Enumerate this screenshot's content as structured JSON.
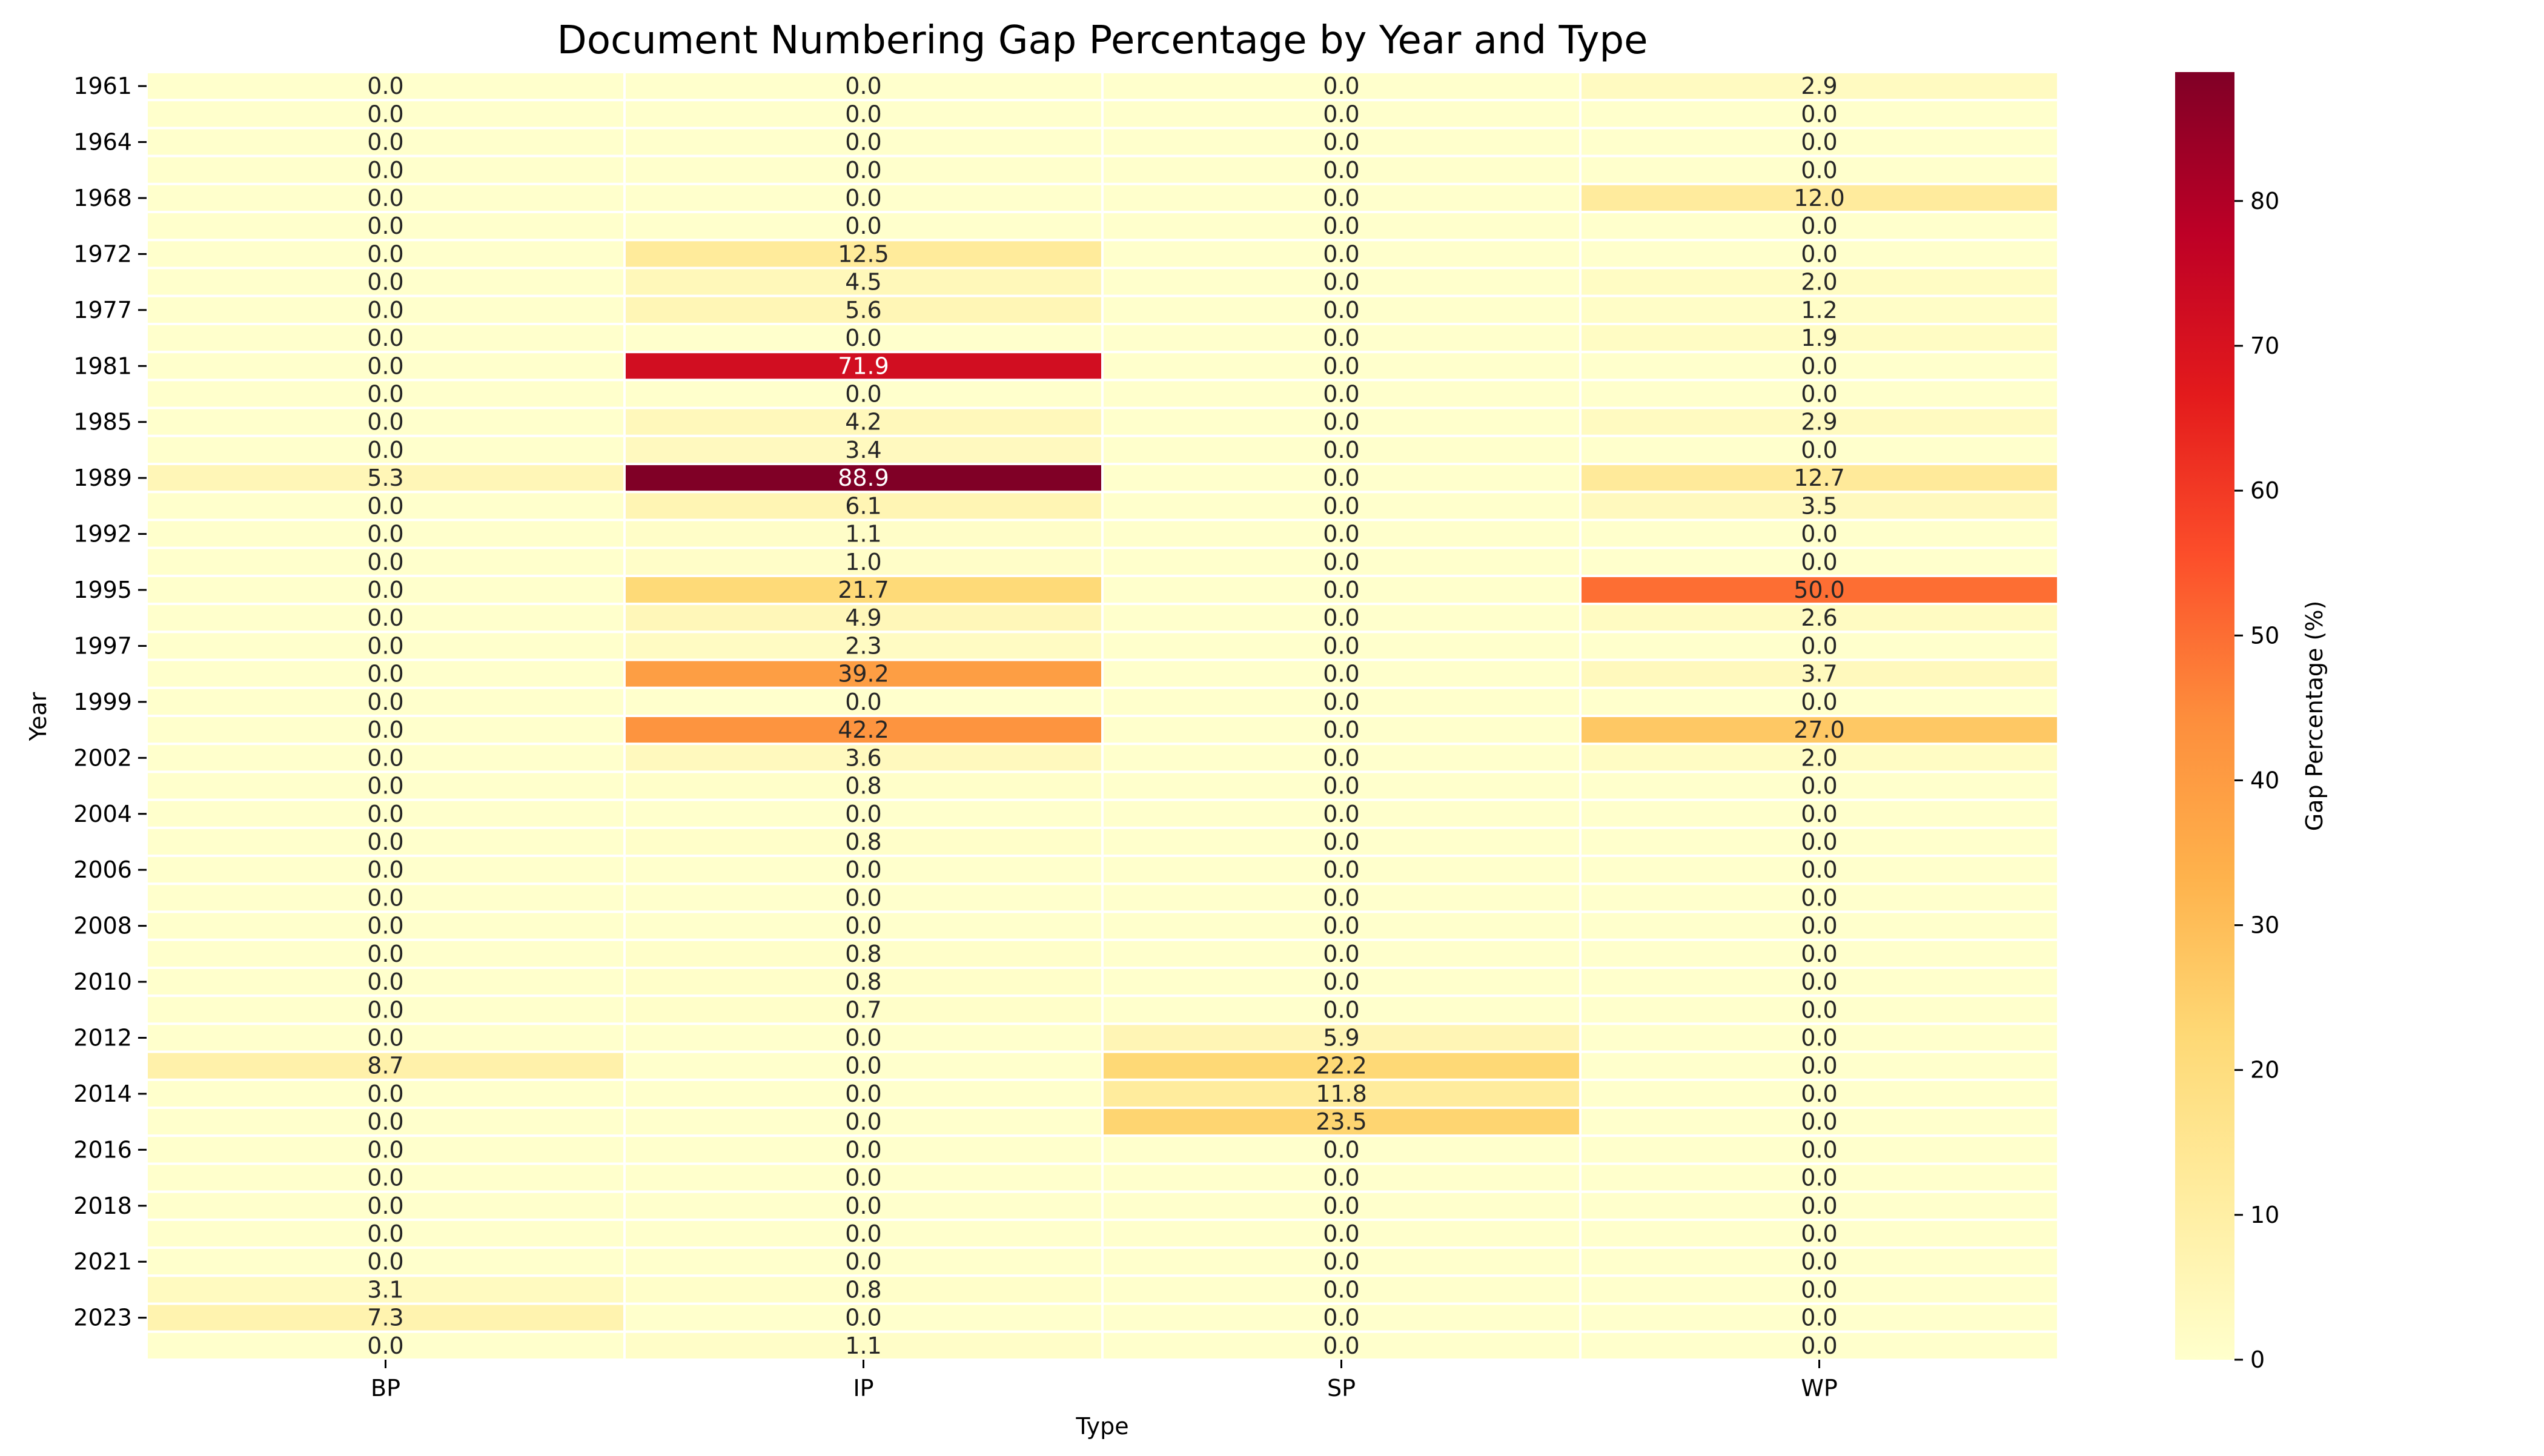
{
  "chart_data": {
    "type": "heatmap",
    "title": "Document Numbering Gap Percentage by Year and Type",
    "xlabel": "Type",
    "ylabel": "Year",
    "colorbar_label": "Gap Percentage (%)",
    "colormap": "YlOrRd",
    "colormap_stops": [
      "#ffffcc",
      "#ffeda0",
      "#fed976",
      "#feb24c",
      "#fd8d3c",
      "#fc4e2a",
      "#e31a1c",
      "#bd0026",
      "#800026"
    ],
    "value_range": [
      0,
      88.9
    ],
    "colorbar_ticks": [
      "0",
      "10",
      "20",
      "30",
      "40",
      "50",
      "60",
      "70",
      "80"
    ],
    "columns": [
      "BP",
      "IP",
      "SP",
      "WP"
    ],
    "rows": [
      {
        "year": "1961",
        "values": [
          0.0,
          0.0,
          0.0,
          2.9
        ]
      },
      {
        "year": "",
        "values": [
          0.0,
          0.0,
          0.0,
          0.0
        ]
      },
      {
        "year": "1964",
        "values": [
          0.0,
          0.0,
          0.0,
          0.0
        ]
      },
      {
        "year": "",
        "values": [
          0.0,
          0.0,
          0.0,
          0.0
        ]
      },
      {
        "year": "1968",
        "values": [
          0.0,
          0.0,
          0.0,
          12.0
        ]
      },
      {
        "year": "",
        "values": [
          0.0,
          0.0,
          0.0,
          0.0
        ]
      },
      {
        "year": "1972",
        "values": [
          0.0,
          12.5,
          0.0,
          0.0
        ]
      },
      {
        "year": "",
        "values": [
          0.0,
          4.5,
          0.0,
          2.0
        ]
      },
      {
        "year": "1977",
        "values": [
          0.0,
          5.6,
          0.0,
          1.2
        ]
      },
      {
        "year": "",
        "values": [
          0.0,
          0.0,
          0.0,
          1.9
        ]
      },
      {
        "year": "1981",
        "values": [
          0.0,
          71.9,
          0.0,
          0.0
        ]
      },
      {
        "year": "",
        "values": [
          0.0,
          0.0,
          0.0,
          0.0
        ]
      },
      {
        "year": "1985",
        "values": [
          0.0,
          4.2,
          0.0,
          2.9
        ]
      },
      {
        "year": "",
        "values": [
          0.0,
          3.4,
          0.0,
          0.0
        ]
      },
      {
        "year": "1989",
        "values": [
          5.3,
          88.9,
          0.0,
          12.7
        ]
      },
      {
        "year": "",
        "values": [
          0.0,
          6.1,
          0.0,
          3.5
        ]
      },
      {
        "year": "1992",
        "values": [
          0.0,
          1.1,
          0.0,
          0.0
        ]
      },
      {
        "year": "",
        "values": [
          0.0,
          1.0,
          0.0,
          0.0
        ]
      },
      {
        "year": "1995",
        "values": [
          0.0,
          21.7,
          0.0,
          50.0
        ]
      },
      {
        "year": "",
        "values": [
          0.0,
          4.9,
          0.0,
          2.6
        ]
      },
      {
        "year": "1997",
        "values": [
          0.0,
          2.3,
          0.0,
          0.0
        ]
      },
      {
        "year": "",
        "values": [
          0.0,
          39.2,
          0.0,
          3.7
        ]
      },
      {
        "year": "1999",
        "values": [
          0.0,
          0.0,
          0.0,
          0.0
        ]
      },
      {
        "year": "",
        "values": [
          0.0,
          42.2,
          0.0,
          27.0
        ]
      },
      {
        "year": "2002",
        "values": [
          0.0,
          3.6,
          0.0,
          2.0
        ]
      },
      {
        "year": "",
        "values": [
          0.0,
          0.8,
          0.0,
          0.0
        ]
      },
      {
        "year": "2004",
        "values": [
          0.0,
          0.0,
          0.0,
          0.0
        ]
      },
      {
        "year": "",
        "values": [
          0.0,
          0.8,
          0.0,
          0.0
        ]
      },
      {
        "year": "2006",
        "values": [
          0.0,
          0.0,
          0.0,
          0.0
        ]
      },
      {
        "year": "",
        "values": [
          0.0,
          0.0,
          0.0,
          0.0
        ]
      },
      {
        "year": "2008",
        "values": [
          0.0,
          0.0,
          0.0,
          0.0
        ]
      },
      {
        "year": "",
        "values": [
          0.0,
          0.8,
          0.0,
          0.0
        ]
      },
      {
        "year": "2010",
        "values": [
          0.0,
          0.8,
          0.0,
          0.0
        ]
      },
      {
        "year": "",
        "values": [
          0.0,
          0.7,
          0.0,
          0.0
        ]
      },
      {
        "year": "2012",
        "values": [
          0.0,
          0.0,
          5.9,
          0.0
        ]
      },
      {
        "year": "",
        "values": [
          8.7,
          0.0,
          22.2,
          0.0
        ]
      },
      {
        "year": "2014",
        "values": [
          0.0,
          0.0,
          11.8,
          0.0
        ]
      },
      {
        "year": "",
        "values": [
          0.0,
          0.0,
          23.5,
          0.0
        ]
      },
      {
        "year": "2016",
        "values": [
          0.0,
          0.0,
          0.0,
          0.0
        ]
      },
      {
        "year": "",
        "values": [
          0.0,
          0.0,
          0.0,
          0.0
        ]
      },
      {
        "year": "2018",
        "values": [
          0.0,
          0.0,
          0.0,
          0.0
        ]
      },
      {
        "year": "",
        "values": [
          0.0,
          0.0,
          0.0,
          0.0
        ]
      },
      {
        "year": "2021",
        "values": [
          0.0,
          0.0,
          0.0,
          0.0
        ]
      },
      {
        "year": "",
        "values": [
          3.1,
          0.8,
          0.0,
          0.0
        ]
      },
      {
        "year": "2023",
        "values": [
          7.3,
          0.0,
          0.0,
          0.0
        ]
      },
      {
        "year": "",
        "values": [
          0.0,
          1.1,
          0.0,
          0.0
        ]
      }
    ]
  }
}
